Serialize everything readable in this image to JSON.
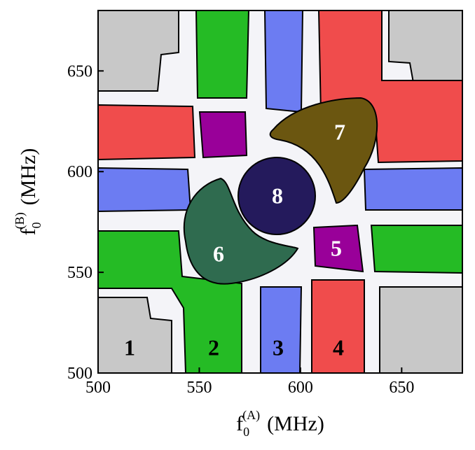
{
  "chart_data": {
    "type": "region-map",
    "xlabel": {
      "symbol": "f",
      "subscript": "0",
      "superscript": "(A)",
      "unit": "(MHz)"
    },
    "ylabel": {
      "symbol": "f",
      "subscript": "0",
      "superscript": "(B)",
      "unit": "(MHz)"
    },
    "xlim": [
      500,
      680
    ],
    "ylim": [
      500,
      680
    ],
    "xticks": [
      500,
      550,
      600,
      650
    ],
    "yticks": [
      500,
      550,
      600,
      650
    ],
    "regions": [
      {
        "label": "1",
        "color": "#c8c8c8"
      },
      {
        "label": "2",
        "color": "#25bb25"
      },
      {
        "label": "3",
        "color": "#6c7cf2"
      },
      {
        "label": "4",
        "color": "#f04c4c"
      },
      {
        "label": "5",
        "color": "#990099"
      },
      {
        "label": "6",
        "color": "#2f6b4f"
      },
      {
        "label": "7",
        "color": "#6b5610"
      },
      {
        "label": "8",
        "color": "#241a5c"
      }
    ]
  }
}
